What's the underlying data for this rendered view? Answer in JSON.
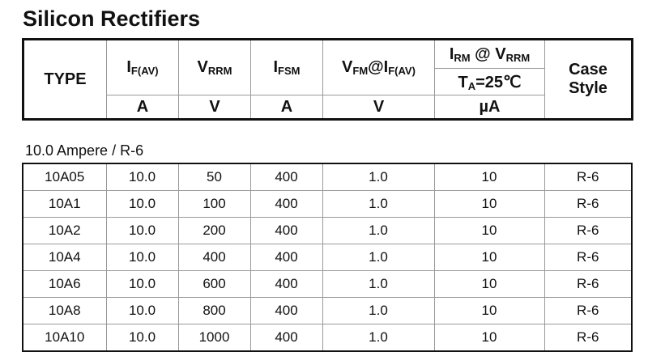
{
  "title": "Silicon Rectifiers",
  "header": {
    "type": "TYPE",
    "cols": [
      {
        "main": "I",
        "sub": "F(AV)",
        "unit": "A"
      },
      {
        "main": "V",
        "sub": "RRM",
        "unit": "V"
      },
      {
        "main": "I",
        "sub": "FSM",
        "unit": "A"
      },
      {
        "main": "V",
        "sub": "FM",
        "main2": "@I",
        "sub2": "F(AV)",
        "unit": "V"
      }
    ],
    "irm": {
      "main": "I",
      "sub": "RM",
      "mid": " @ V",
      "sub2": "RRM",
      "cond_main": "T",
      "cond_sub": "A",
      "cond_val": "=25℃",
      "unit": "µA"
    },
    "case_style": [
      "Case",
      "Style"
    ]
  },
  "section_label": "10.0 Ampere / R-6",
  "rows": [
    [
      "10A05",
      "10.0",
      "50",
      "400",
      "1.0",
      "10",
      "R-6"
    ],
    [
      "10A1",
      "10.0",
      "100",
      "400",
      "1.0",
      "10",
      "R-6"
    ],
    [
      "10A2",
      "10.0",
      "200",
      "400",
      "1.0",
      "10",
      "R-6"
    ],
    [
      "10A4",
      "10.0",
      "400",
      "400",
      "1.0",
      "10",
      "R-6"
    ],
    [
      "10A6",
      "10.0",
      "600",
      "400",
      "1.0",
      "10",
      "R-6"
    ],
    [
      "10A8",
      "10.0",
      "800",
      "400",
      "1.0",
      "10",
      "R-6"
    ],
    [
      "10A10",
      "10.0",
      "1000",
      "400",
      "1.0",
      "10",
      "R-6"
    ]
  ]
}
